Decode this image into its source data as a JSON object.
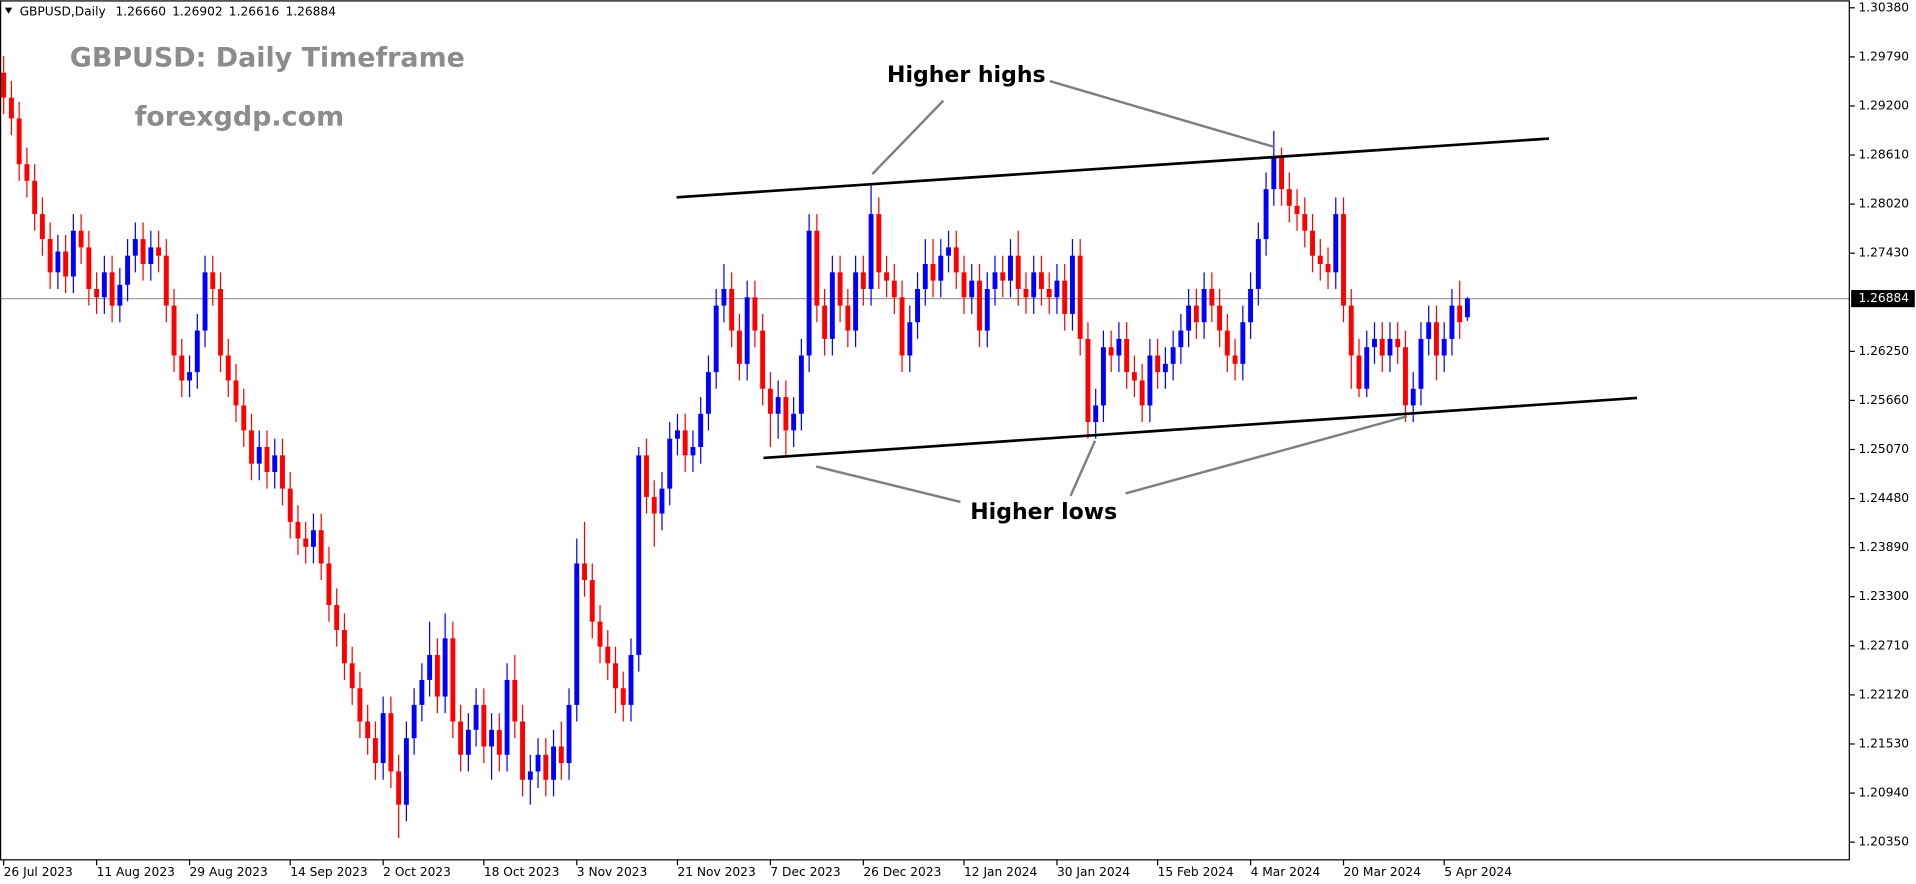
{
  "chart_data": {
    "type": "candlestick",
    "header_symbol": "GBPUSD,Daily",
    "header_ohlc": [
      "1.26660",
      "1.26902",
      "1.26616",
      "1.26884"
    ],
    "title": "GBPUSD: Daily Timeframe",
    "subtitle": "forexgdp.com",
    "annotations": [
      "Higher highs",
      "Higher lows"
    ],
    "colors": {
      "up": "#0000ff",
      "down": "#ff0000"
    },
    "ylim": [
      1.2013,
      1.3047
    ],
    "yticks": [
      {
        "value": 1.3038,
        "label": "1.30380"
      },
      {
        "value": 1.2979,
        "label": "1.29790"
      },
      {
        "value": 1.292,
        "label": "1.29200"
      },
      {
        "value": 1.2861,
        "label": "1.28610"
      },
      {
        "value": 1.2802,
        "label": "1.28020"
      },
      {
        "value": 1.2743,
        "label": "1.27430"
      },
      {
        "value": 1.2625,
        "label": "1.26250"
      },
      {
        "value": 1.2566,
        "label": "1.25660"
      },
      {
        "value": 1.2507,
        "label": "1.25070"
      },
      {
        "value": 1.2448,
        "label": "1.24480"
      },
      {
        "value": 1.2389,
        "label": "1.23890"
      },
      {
        "value": 1.233,
        "label": "1.23300"
      },
      {
        "value": 1.2271,
        "label": "1.22710"
      },
      {
        "value": 1.2212,
        "label": "1.22120"
      },
      {
        "value": 1.2153,
        "label": "1.21530"
      },
      {
        "value": 1.2094,
        "label": "1.20940"
      },
      {
        "value": 1.2035,
        "label": "1.20350"
      }
    ],
    "price_line": {
      "value": 1.26884,
      "label": "1.26884"
    },
    "categories": [
      "26 Jul 2023",
      null,
      null,
      null,
      null,
      null,
      null,
      null,
      null,
      null,
      null,
      null,
      "11 Aug 2023",
      null,
      null,
      null,
      null,
      null,
      null,
      null,
      null,
      null,
      null,
      null,
      "29 Aug 2023",
      null,
      null,
      null,
      null,
      null,
      null,
      null,
      null,
      null,
      null,
      null,
      null,
      "14 Sep 2023",
      null,
      null,
      null,
      null,
      null,
      null,
      null,
      null,
      null,
      null,
      null,
      "2 Oct 2023",
      null,
      null,
      null,
      null,
      null,
      null,
      null,
      null,
      null,
      null,
      null,
      null,
      "18 Oct 2023",
      null,
      null,
      null,
      null,
      null,
      null,
      null,
      null,
      null,
      null,
      null,
      "3 Nov 2023",
      null,
      null,
      null,
      null,
      null,
      null,
      null,
      null,
      null,
      null,
      null,
      null,
      "21 Nov 2023",
      null,
      null,
      null,
      null,
      null,
      null,
      null,
      null,
      null,
      null,
      null,
      "7 Dec 2023",
      null,
      null,
      null,
      null,
      null,
      null,
      null,
      null,
      null,
      null,
      null,
      "26 Dec 2023",
      null,
      null,
      null,
      null,
      null,
      null,
      null,
      null,
      null,
      null,
      null,
      null,
      "12 Jan 2024",
      null,
      null,
      null,
      null,
      null,
      null,
      null,
      null,
      null,
      null,
      null,
      "30 Jan 2024",
      null,
      null,
      null,
      null,
      null,
      null,
      null,
      null,
      null,
      null,
      null,
      null,
      "15 Feb 2024",
      null,
      null,
      null,
      null,
      null,
      null,
      null,
      null,
      null,
      null,
      null,
      "4 Mar 2024",
      null,
      null,
      null,
      null,
      null,
      null,
      null,
      null,
      null,
      null,
      null,
      "20 Mar 2024",
      null,
      null,
      null,
      null,
      null,
      null,
      null,
      null,
      null,
      null,
      null,
      null,
      "5 Apr 2024",
      null,
      null,
      null
    ],
    "open": [
      1.296,
      1.293,
      1.2905,
      1.285,
      1.283,
      1.279,
      1.276,
      1.272,
      1.2745,
      1.2715,
      1.277,
      1.275,
      1.27,
      1.269,
      1.272,
      1.268,
      1.2705,
      1.274,
      1.276,
      1.273,
      1.275,
      1.274,
      1.268,
      1.262,
      1.259,
      1.26,
      1.265,
      1.272,
      1.27,
      1.262,
      1.259,
      1.256,
      1.253,
      1.249,
      1.251,
      1.248,
      1.25,
      1.246,
      1.242,
      1.24,
      1.239,
      1.241,
      1.237,
      1.232,
      1.229,
      1.225,
      1.222,
      1.218,
      1.216,
      1.213,
      1.219,
      1.212,
      1.208,
      1.216,
      1.22,
      1.223,
      1.226,
      1.221,
      1.228,
      1.218,
      1.214,
      1.217,
      1.22,
      1.215,
      1.217,
      1.214,
      1.223,
      1.218,
      1.211,
      1.212,
      1.214,
      1.211,
      1.215,
      1.213,
      1.22,
      1.237,
      1.235,
      1.23,
      1.227,
      1.225,
      1.222,
      1.22,
      1.226,
      1.25,
      1.245,
      1.243,
      1.246,
      1.252,
      1.253,
      1.25,
      1.251,
      1.255,
      1.26,
      1.268,
      1.27,
      1.265,
      1.261,
      1.269,
      1.265,
      1.258,
      1.255,
      1.257,
      1.253,
      1.255,
      1.262,
      1.277,
      1.268,
      1.264,
      1.272,
      1.268,
      1.265,
      1.272,
      1.27,
      1.279,
      1.272,
      1.271,
      1.269,
      1.262,
      1.266,
      1.27,
      1.273,
      1.271,
      1.274,
      1.275,
      1.272,
      1.269,
      1.271,
      1.265,
      1.27,
      1.272,
      1.271,
      1.274,
      1.27,
      1.269,
      1.272,
      1.27,
      1.269,
      1.271,
      1.267,
      1.274,
      1.264,
      1.254,
      1.256,
      1.263,
      1.262,
      1.264,
      1.26,
      1.259,
      1.256,
      1.262,
      1.26,
      1.261,
      1.263,
      1.265,
      1.268,
      1.266,
      1.27,
      1.268,
      1.265,
      1.262,
      1.261,
      1.266,
      1.27,
      1.276,
      1.282,
      1.286,
      1.282,
      1.28,
      1.279,
      1.277,
      1.274,
      1.273,
      1.272,
      1.279,
      1.268,
      1.262,
      1.258,
      1.263,
      1.264,
      1.262,
      1.264,
      1.263,
      1.256,
      1.258,
      1.264,
      1.266,
      1.262,
      1.264,
      1.268,
      1.2666
    ],
    "high": [
      1.298,
      1.295,
      1.2925,
      1.287,
      1.285,
      1.281,
      1.278,
      1.2765,
      1.2765,
      1.279,
      1.279,
      1.277,
      1.272,
      1.274,
      1.274,
      1.2725,
      1.276,
      1.278,
      1.278,
      1.277,
      1.277,
      1.276,
      1.27,
      1.264,
      1.262,
      1.267,
      1.274,
      1.274,
      1.272,
      1.264,
      1.261,
      1.258,
      1.255,
      1.253,
      1.253,
      1.252,
      1.252,
      1.248,
      1.244,
      1.242,
      1.243,
      1.243,
      1.239,
      1.234,
      1.231,
      1.227,
      1.224,
      1.22,
      1.218,
      1.221,
      1.221,
      1.214,
      1.218,
      1.222,
      1.225,
      1.23,
      1.228,
      1.231,
      1.23,
      1.22,
      1.219,
      1.222,
      1.222,
      1.219,
      1.219,
      1.225,
      1.226,
      1.22,
      1.214,
      1.216,
      1.216,
      1.217,
      1.218,
      1.222,
      1.24,
      1.242,
      1.237,
      1.232,
      1.229,
      1.227,
      1.224,
      1.228,
      1.251,
      1.252,
      1.247,
      1.248,
      1.254,
      1.255,
      1.255,
      1.253,
      1.257,
      1.262,
      1.27,
      1.273,
      1.272,
      1.267,
      1.271,
      1.271,
      1.267,
      1.26,
      1.259,
      1.259,
      1.257,
      1.264,
      1.279,
      1.279,
      1.27,
      1.274,
      1.274,
      1.27,
      1.274,
      1.274,
      1.2825,
      1.281,
      1.274,
      1.273,
      1.271,
      1.268,
      1.272,
      1.276,
      1.276,
      1.276,
      1.277,
      1.277,
      1.274,
      1.273,
      1.273,
      1.272,
      1.274,
      1.274,
      1.276,
      1.277,
      1.272,
      1.274,
      1.274,
      1.272,
      1.273,
      1.273,
      1.276,
      1.276,
      1.266,
      1.258,
      1.265,
      1.265,
      1.266,
      1.266,
      1.262,
      1.261,
      1.264,
      1.264,
      1.263,
      1.265,
      1.267,
      1.27,
      1.27,
      1.272,
      1.272,
      1.27,
      1.267,
      1.264,
      1.268,
      1.272,
      1.278,
      1.284,
      1.289,
      1.287,
      1.284,
      1.282,
      1.281,
      1.279,
      1.276,
      1.275,
      1.281,
      1.281,
      1.27,
      1.264,
      1.265,
      1.266,
      1.266,
      1.266,
      1.266,
      1.265,
      1.26,
      1.266,
      1.268,
      1.268,
      1.266,
      1.27,
      1.271,
      1.26902
    ],
    "low": [
      1.291,
      1.2885,
      1.283,
      1.281,
      1.277,
      1.274,
      1.27,
      1.27,
      1.2695,
      1.2695,
      1.273,
      1.268,
      1.267,
      1.267,
      1.266,
      1.266,
      1.2685,
      1.272,
      1.271,
      1.271,
      1.272,
      1.266,
      1.26,
      1.257,
      1.257,
      1.258,
      1.263,
      1.268,
      1.26,
      1.257,
      1.254,
      1.251,
      1.247,
      1.247,
      1.246,
      1.246,
      1.244,
      1.24,
      1.238,
      1.237,
      1.237,
      1.235,
      1.23,
      1.227,
      1.223,
      1.22,
      1.216,
      1.214,
      1.211,
      1.211,
      1.21,
      1.204,
      1.206,
      1.214,
      1.218,
      1.221,
      1.219,
      1.219,
      1.216,
      1.212,
      1.212,
      1.215,
      1.213,
      1.211,
      1.212,
      1.212,
      1.216,
      1.209,
      1.208,
      1.21,
      1.209,
      1.209,
      1.211,
      1.211,
      1.218,
      1.233,
      1.228,
      1.225,
      1.223,
      1.219,
      1.218,
      1.218,
      1.224,
      1.243,
      1.239,
      1.241,
      1.244,
      1.25,
      1.248,
      1.248,
      1.249,
      1.253,
      1.258,
      1.266,
      1.263,
      1.259,
      1.259,
      1.263,
      1.256,
      1.251,
      1.252,
      1.25,
      1.251,
      1.253,
      1.26,
      1.266,
      1.262,
      1.262,
      1.266,
      1.263,
      1.263,
      1.268,
      1.268,
      1.27,
      1.269,
      1.267,
      1.26,
      1.26,
      1.264,
      1.268,
      1.269,
      1.269,
      1.272,
      1.27,
      1.267,
      1.267,
      1.263,
      1.263,
      1.268,
      1.269,
      1.269,
      1.268,
      1.267,
      1.267,
      1.268,
      1.267,
      1.267,
      1.265,
      1.265,
      1.262,
      1.252,
      1.252,
      1.254,
      1.26,
      1.26,
      1.258,
      1.257,
      1.254,
      1.254,
      1.258,
      1.258,
      1.259,
      1.261,
      1.263,
      1.264,
      1.264,
      1.266,
      1.263,
      1.26,
      1.259,
      1.259,
      1.264,
      1.268,
      1.274,
      1.28,
      1.28,
      1.278,
      1.277,
      1.275,
      1.272,
      1.271,
      1.27,
      1.27,
      1.266,
      1.258,
      1.257,
      1.257,
      1.261,
      1.26,
      1.26,
      1.261,
      1.254,
      1.254,
      1.256,
      1.262,
      1.259,
      1.26,
      1.262,
      1.264,
      1.26616
    ],
    "close": [
      1.293,
      1.2905,
      1.285,
      1.283,
      1.279,
      1.276,
      1.272,
      1.2745,
      1.2715,
      1.277,
      1.275,
      1.27,
      1.269,
      1.272,
      1.268,
      1.2705,
      1.274,
      1.276,
      1.273,
      1.275,
      1.274,
      1.268,
      1.262,
      1.259,
      1.26,
      1.265,
      1.272,
      1.27,
      1.262,
      1.259,
      1.256,
      1.253,
      1.249,
      1.251,
      1.248,
      1.25,
      1.246,
      1.242,
      1.24,
      1.239,
      1.241,
      1.237,
      1.232,
      1.229,
      1.225,
      1.222,
      1.218,
      1.216,
      1.213,
      1.219,
      1.212,
      1.208,
      1.216,
      1.22,
      1.223,
      1.226,
      1.221,
      1.228,
      1.218,
      1.214,
      1.217,
      1.22,
      1.215,
      1.217,
      1.214,
      1.223,
      1.218,
      1.211,
      1.212,
      1.214,
      1.211,
      1.215,
      1.213,
      1.22,
      1.237,
      1.235,
      1.23,
      1.227,
      1.225,
      1.222,
      1.22,
      1.226,
      1.25,
      1.245,
      1.243,
      1.246,
      1.252,
      1.253,
      1.25,
      1.251,
      1.255,
      1.26,
      1.268,
      1.27,
      1.265,
      1.261,
      1.269,
      1.265,
      1.258,
      1.255,
      1.257,
      1.253,
      1.255,
      1.262,
      1.277,
      1.268,
      1.264,
      1.272,
      1.268,
      1.265,
      1.272,
      1.27,
      1.279,
      1.272,
      1.271,
      1.269,
      1.262,
      1.266,
      1.27,
      1.273,
      1.271,
      1.274,
      1.275,
      1.272,
      1.269,
      1.271,
      1.265,
      1.27,
      1.272,
      1.271,
      1.274,
      1.27,
      1.269,
      1.272,
      1.27,
      1.269,
      1.271,
      1.267,
      1.274,
      1.264,
      1.254,
      1.256,
      1.263,
      1.262,
      1.264,
      1.26,
      1.259,
      1.256,
      1.262,
      1.26,
      1.261,
      1.263,
      1.265,
      1.268,
      1.266,
      1.27,
      1.268,
      1.265,
      1.262,
      1.261,
      1.266,
      1.27,
      1.276,
      1.282,
      1.286,
      1.282,
      1.28,
      1.279,
      1.277,
      1.274,
      1.273,
      1.272,
      1.279,
      1.268,
      1.262,
      1.258,
      1.263,
      1.264,
      1.262,
      1.264,
      1.263,
      1.256,
      1.258,
      1.264,
      1.266,
      1.262,
      1.264,
      1.268,
      1.266,
      1.26884
    ]
  }
}
